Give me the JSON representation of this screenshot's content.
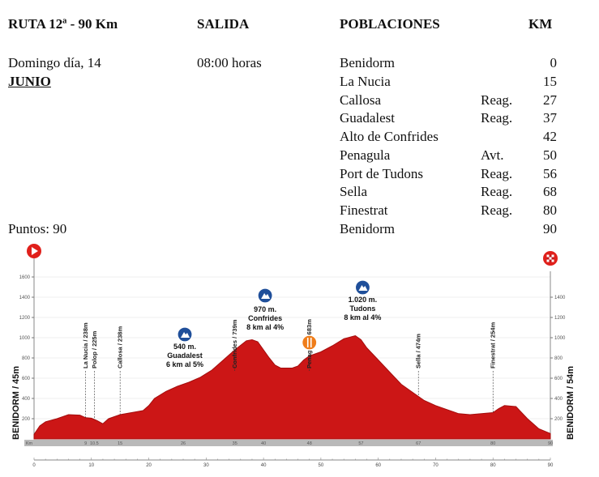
{
  "header": {
    "route": "RUTA 12ª - 90  Km",
    "departure_header": "SALIDA",
    "towns_header": "POBLACIONES",
    "km_header": "KM"
  },
  "info": {
    "date": "Domingo día, 14",
    "month": "JUNIO",
    "time": "08:00 horas",
    "points": "Puntos:  90"
  },
  "towns": [
    {
      "name": "Benidorm",
      "note": "",
      "km": "0"
    },
    {
      "name": "La Nucia",
      "note": "",
      "km": "15"
    },
    {
      "name": "Callosa",
      "note": "Reag.",
      "km": "27"
    },
    {
      "name": "Guadalest",
      "note": "Reag.",
      "km": "37"
    },
    {
      "name": "Alto de Confrides",
      "note": "",
      "km": "42"
    },
    {
      "name": "Penagula",
      "note": "Avt.",
      "km": "50"
    },
    {
      "name": "Port de Tudons",
      "note": "Reag.",
      "km": "56"
    },
    {
      "name": "Sella",
      "note": "Reag.",
      "km": "68"
    },
    {
      "name": "Finestrat",
      "note": "Reag.",
      "km": "80"
    },
    {
      "name": "Benidorm",
      "note": "",
      "km": "90"
    }
  ],
  "colors": {
    "profile_fill": "#cc1616",
    "profile_stroke": "#a30d0d",
    "climb_badge": "#1f4f9a",
    "sprint_badge": "#ef7d1a",
    "start_marker": "#e0201b",
    "axis_band": "#b9b9b9"
  },
  "icons": {
    "start": "play-circle-icon",
    "finish": "checkered-flag-icon",
    "climb": "mountain-climb-icon",
    "sprint": "sprint-icon"
  },
  "chart_data": {
    "type": "area",
    "xlabel": "",
    "ylabel": "",
    "xlim": [
      0,
      90
    ],
    "ylim": [
      0,
      1700
    ],
    "x_ticks": [
      "0",
      "10",
      "20",
      "30",
      "40",
      "50",
      "60",
      "70",
      "80",
      "90"
    ],
    "km_band_labels": [
      "Km",
      "9",
      "10.5",
      "15",
      "26",
      "35",
      "40",
      "48",
      "57",
      "67",
      "80",
      "90"
    ],
    "y_ticks_left": [
      "200",
      "400",
      "600",
      "800",
      "1000",
      "1200",
      "1400",
      "1600"
    ],
    "y_ticks_right": [
      "200",
      "400",
      "600",
      "800",
      "1000",
      "1200",
      "1400"
    ],
    "start_label": "BENIDORM / 45m",
    "finish_label": "BENIDORM / 54m",
    "profile": {
      "x": [
        0,
        1,
        2,
        4,
        6,
        8,
        9,
        10,
        11,
        12,
        13,
        15,
        17,
        19,
        20,
        21,
        23,
        25,
        26,
        27,
        29,
        31,
        33,
        35,
        37,
        38,
        39,
        40,
        41,
        42,
        43,
        45,
        46,
        47,
        48,
        50,
        52,
        54,
        56,
        57,
        58,
        60,
        62,
        64,
        66,
        67,
        68,
        70,
        72,
        74,
        76,
        78,
        80,
        81,
        82,
        84,
        86,
        88,
        90
      ],
      "y": [
        45,
        130,
        170,
        200,
        240,
        235,
        210,
        205,
        180,
        150,
        200,
        240,
        260,
        280,
        330,
        400,
        470,
        520,
        540,
        560,
        610,
        680,
        780,
        880,
        970,
        980,
        960,
        880,
        800,
        730,
        700,
        700,
        720,
        780,
        820,
        860,
        920,
        990,
        1020,
        980,
        900,
        780,
        660,
        540,
        460,
        420,
        380,
        330,
        290,
        250,
        240,
        250,
        260,
        300,
        330,
        320,
        200,
        100,
        54
      ]
    },
    "points_of_interest": [
      {
        "km": 9,
        "label": "La Nucia / 238m"
      },
      {
        "km": 10.5,
        "label": "Polop / 225m"
      },
      {
        "km": 15,
        "label": "Callosa / 238m"
      },
      {
        "km": 35,
        "label": "Confrides / 739m"
      },
      {
        "km": 48,
        "label": "Penagulla / 683m"
      },
      {
        "km": 67,
        "label": "Sella / 474m"
      },
      {
        "km": 80,
        "label": "Finestrat / 254m"
      }
    ],
    "climbs": [
      {
        "km": 26,
        "lines": [
          "540 m.",
          "Guadalest",
          "6 km al 5%"
        ]
      },
      {
        "km": 40,
        "lines": [
          "970 m.",
          "Confrides",
          "8 km al 4%"
        ]
      },
      {
        "km": 57,
        "lines": [
          "1.020 m.",
          "Tudons",
          "8 km al 4%"
        ]
      }
    ]
  }
}
